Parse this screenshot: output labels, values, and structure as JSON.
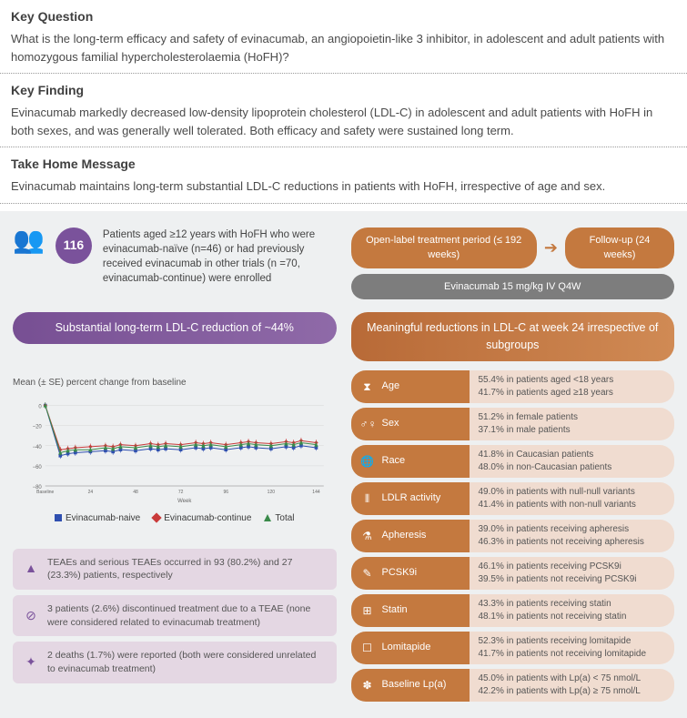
{
  "sections": {
    "keyQuestion": {
      "title": "Key Question",
      "text": "What is the long-term efficacy and safety of evinacumab, an angiopoietin-like 3 inhibitor, in adolescent and adult patients with homozygous familial hypercholesterolaemia (HoFH)?"
    },
    "keyFinding": {
      "title": "Key Finding",
      "text": "Evinacumab markedly decreased low-density lipoprotein cholesterol (LDL-C) in adolescent and adult patients with HoFH in both sexes, and was generally well tolerated. Both efficacy and safety were sustained long term."
    },
    "takeHome": {
      "title": "Take Home Message",
      "text": "Evinacumab maintains long-term substantial LDL-C reductions in patients with HoFH, irrespective of age and sex."
    }
  },
  "enrollment": {
    "count": "116",
    "text": "Patients aged ≥12 years with HoFH who were evinacumab-naïve (n=46) or had previously received evinacumab in other trials (n =70, evinacumab-continue) were enrolled"
  },
  "treatmentPills": {
    "openLabel": "Open-label treatment period (≤ 192 weeks)",
    "followUp": "Follow-up (24 weeks)",
    "dose": "Evinacumab 15 mg/kg IV Q4W"
  },
  "banners": {
    "purple": "Substantial long-term LDL-C reduction of ~44%",
    "orange": "Meaningful reductions in LDL-C at week 24 irrespective of subgroups"
  },
  "chart": {
    "title": "Mean (± SE) percent change from baseline",
    "y_ticks": [
      "−80",
      "−60",
      "−40",
      "−20",
      "0"
    ],
    "x_ticks": [
      "Baseline",
      "8",
      "12",
      "16",
      "24",
      "32",
      "36",
      "40",
      "48",
      "56",
      "60",
      "64",
      "72",
      "80",
      "84",
      "88",
      "96",
      "104108112",
      "120",
      "128132136",
      "144"
    ],
    "x_label": "Week",
    "series": {
      "naive": {
        "label": "Evinacumab-naive",
        "color": "#2f4fb0",
        "marker": "square",
        "x": [
          0,
          8,
          12,
          16,
          24,
          32,
          36,
          40,
          48,
          56,
          60,
          64,
          72,
          80,
          84,
          88,
          96,
          104,
          108,
          112,
          120,
          128,
          132,
          136,
          144
        ],
        "y": [
          0,
          -50,
          -48,
          -47,
          -46,
          -45,
          -46,
          -44,
          -45,
          -43,
          -44,
          -43,
          -44,
          -42,
          -43,
          -42,
          -44,
          -42,
          -41,
          -42,
          -43,
          -41,
          -42,
          -40,
          -42
        ]
      },
      "continue": {
        "label": "Evinacumab-continue",
        "color": "#c93a3a",
        "marker": "diamond",
        "x": [
          0,
          8,
          12,
          16,
          24,
          32,
          36,
          40,
          48,
          56,
          60,
          64,
          72,
          80,
          84,
          88,
          96,
          104,
          108,
          112,
          120,
          128,
          132,
          136,
          144
        ],
        "y": [
          0,
          -44,
          -43,
          -42,
          -41,
          -40,
          -41,
          -39,
          -40,
          -38,
          -39,
          -38,
          -39,
          -37,
          -38,
          -37,
          -39,
          -37,
          -36,
          -37,
          -38,
          -36,
          -37,
          -35,
          -37
        ]
      },
      "total": {
        "label": "Total",
        "color": "#3a8a4a",
        "marker": "triangle",
        "x": [
          0,
          8,
          12,
          16,
          24,
          32,
          36,
          40,
          48,
          56,
          60,
          64,
          72,
          80,
          84,
          88,
          96,
          104,
          108,
          112,
          120,
          128,
          132,
          136,
          144
        ],
        "y": [
          0,
          -47,
          -45,
          -44,
          -44,
          -42,
          -43,
          -41,
          -42,
          -40,
          -41,
          -40,
          -41,
          -39,
          -40,
          -39,
          -41,
          -39,
          -38,
          -39,
          -40,
          -38,
          -39,
          -37,
          -39
        ]
      }
    },
    "ylim": [
      -80,
      5
    ],
    "xlim": [
      0,
      148
    ],
    "grid_color": "#d8d8d8",
    "err": 3
  },
  "safety": [
    {
      "icon": "▲",
      "text": "TEAEs and serious TEAEs occurred in 93 (80.2%) and 27 (23.3%) patients, respectively"
    },
    {
      "icon": "⊘",
      "text": "3 patients (2.6%) discontinued treatment due to a TEAE (none were considered related to evinacumab treatment)"
    },
    {
      "icon": "✦",
      "text": "2 deaths (1.7%) were reported (both were considered unrelated to evinacumab treatment)"
    }
  ],
  "subgroups": [
    {
      "icon": "⧗",
      "label": "Age",
      "v1": "55.4% in patients aged <18 years",
      "v2": "41.7% in patients aged ≥18 years"
    },
    {
      "icon": "♂♀",
      "label": "Sex",
      "v1": "51.2% in female patients",
      "v2": "37.1% in male patients"
    },
    {
      "icon": "🌐",
      "label": "Race",
      "v1": "41.8% in Caucasian patients",
      "v2": "48.0% in non-Caucasian patients"
    },
    {
      "icon": "⫴",
      "label": "LDLR activity",
      "v1": "49.0% in patients with null-null variants",
      "v2": "41.4% in patients with non-null variants"
    },
    {
      "icon": "⚗",
      "label": "Apheresis",
      "v1": "39.0% in patients receiving apheresis",
      "v2": "46.3% in patients not receiving apheresis"
    },
    {
      "icon": "✎",
      "label": "PCSK9i",
      "v1": "46.1% in patients receiving PCSK9i",
      "v2": "39.5% in patients not receiving PCSK9i"
    },
    {
      "icon": "⊞",
      "label": "Statin",
      "v1": "43.3% in patients receiving statin",
      "v2": "48.1% in patients not receiving statin"
    },
    {
      "icon": "☐",
      "label": "Lomitapide",
      "v1": "52.3% in patients receiving lomitapide",
      "v2": "41.7% in patients not receiving lomitapide"
    },
    {
      "icon": "✽",
      "label": "Baseline Lp(a)",
      "v1": "45.0% in patients with Lp(a) < 75 nmol/L",
      "v2": "42.2% in patients with Lp(a) ≥ 75 nmol/L"
    }
  ],
  "colors": {
    "purple": "#7a529b",
    "orange": "#c4793f",
    "gray": "#7d7d7d"
  }
}
